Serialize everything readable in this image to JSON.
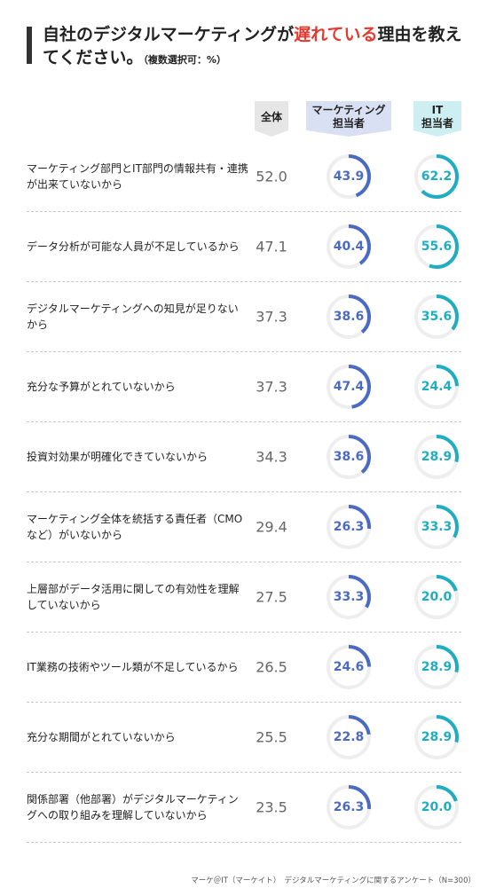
{
  "title": {
    "part1": "自社のデジタルマーケティングが",
    "highlight": "遅れている",
    "part2": "理由を教えてください。",
    "note": "（複数選択可：%）",
    "highlight_color": "#e8382f"
  },
  "columns": {
    "all": "全体",
    "mk_line1": "マーケティング",
    "mk_line2": "担当者",
    "it_line1": "IT",
    "it_line2": "担当者",
    "all_color": "#e6e6e6",
    "mk_color": "#d9e0f3",
    "it_color": "#cdeff1"
  },
  "chart_data": {
    "type": "table",
    "columns": [
      "全体",
      "マーケティング担当者",
      "IT担当者"
    ],
    "rows": [
      {
        "label": "マーケティング部門とIT部門の情報共有・連携が出来ていないから",
        "all": "52.0",
        "mk": 43.9,
        "it": 62.2
      },
      {
        "label": "データ分析が可能な人員が不足しているから",
        "all": "47.1",
        "mk": 40.4,
        "it": 55.6
      },
      {
        "label": "デジタルマーケティングへの知見が足りないから",
        "all": "37.3",
        "mk": 38.6,
        "it": 35.6
      },
      {
        "label": "充分な予算がとれていないから",
        "all": "37.3",
        "mk": 47.4,
        "it": 24.4
      },
      {
        "label": "投資対効果が明確化できていないから",
        "all": "34.3",
        "mk": 38.6,
        "it": 28.9
      },
      {
        "label": "マーケティング全体を統括する責任者（CMOなど）がいないから",
        "all": "29.4",
        "mk": 26.3,
        "it": 33.3
      },
      {
        "label": "上層部がデータ活用に関しての有効性を理解していないから",
        "all": "27.5",
        "mk": 33.3,
        "it": 20.0
      },
      {
        "label": "IT業務の技術やツール類が不足しているから",
        "all": "26.5",
        "mk": 24.6,
        "it": 28.9
      },
      {
        "label": "充分な期間がとれていないから",
        "all": "25.5",
        "mk": 22.8,
        "it": 28.9
      },
      {
        "label": "関係部署（他部署）がデジタルマーケティングへの取り組みを理解していないから",
        "all": "23.5",
        "mk": 26.3,
        "it": 20.0
      }
    ],
    "ring_max": 100,
    "mk_color": "#4b6bc2",
    "it_color": "#21adc1",
    "track_color": "#eeeeee"
  },
  "footer": "マーケ＠IT（マーケイト）　デジタルマーケティングに関するアンケート（N=300）"
}
